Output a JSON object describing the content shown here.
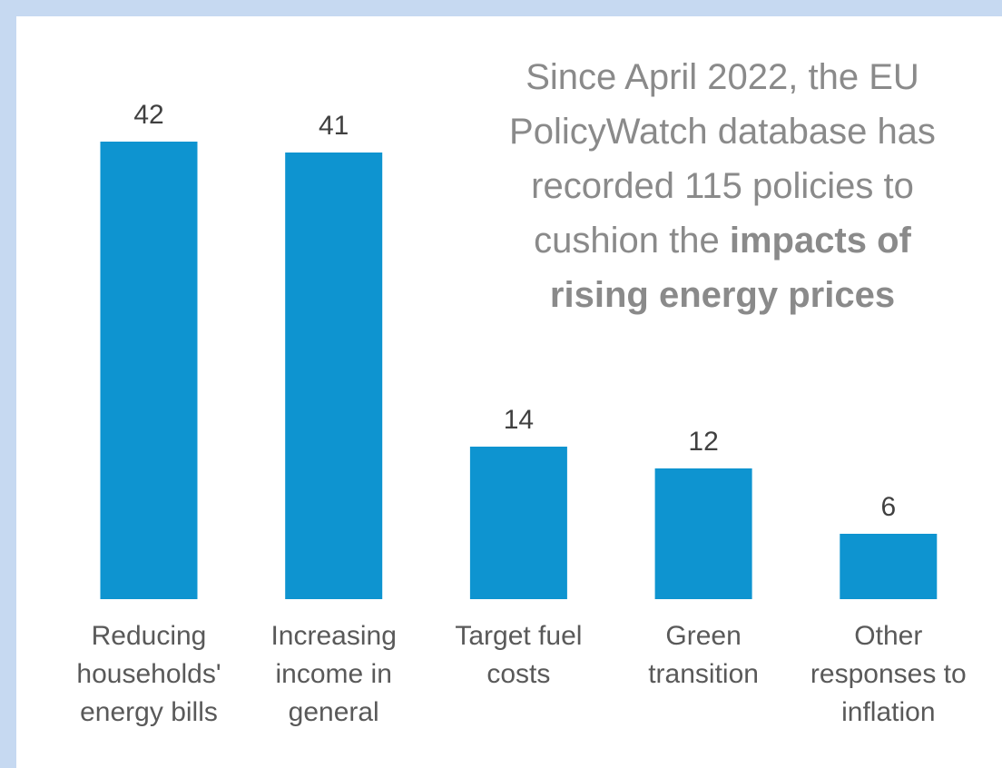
{
  "chart_data": {
    "type": "bar",
    "annotation": [
      "Since April 2022, the EU PolicyWatch database has recorded 115 policies to cushion the",
      "impacts of rising energy prices"
    ],
    "categories": [
      "Reducing households' energy bills",
      "Increasing income in general",
      "Target fuel costs",
      "Green transition",
      "Other responses to inflation"
    ],
    "values": [
      42,
      41,
      14,
      12,
      6
    ],
    "color": "#0e94d0"
  }
}
